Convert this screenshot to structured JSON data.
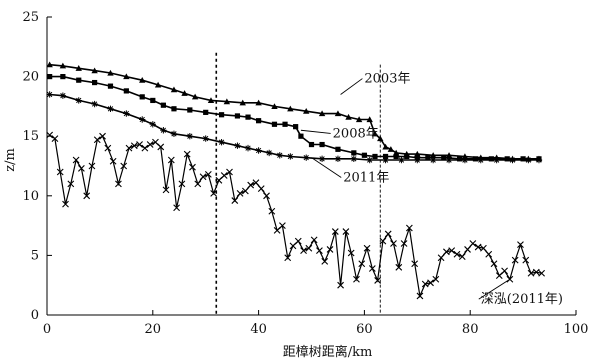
{
  "chart_data": {
    "type": "line",
    "title": "",
    "xlabel": "距樟树距离/km",
    "ylabel": "z/m",
    "xlim": [
      0,
      100
    ],
    "ylim": [
      0,
      25
    ],
    "xticks": [
      0,
      20,
      40,
      60,
      80,
      100
    ],
    "yticks": [
      0,
      5,
      10,
      15,
      20,
      25
    ],
    "grid": false,
    "legend": "none",
    "reference_lines_x": [
      32,
      63
    ],
    "series": [
      {
        "name": "2003年",
        "marker": "triangle",
        "color": "#000000",
        "points": [
          [
            0.5,
            21.0
          ],
          [
            3,
            20.9
          ],
          [
            6,
            20.7
          ],
          [
            9,
            20.5
          ],
          [
            12,
            20.3
          ],
          [
            15,
            20.0
          ],
          [
            18,
            19.7
          ],
          [
            21,
            19.3
          ],
          [
            24,
            18.9
          ],
          [
            26,
            18.6
          ],
          [
            28,
            18.3
          ],
          [
            31,
            18.0
          ],
          [
            34,
            17.9
          ],
          [
            37,
            17.8
          ],
          [
            40,
            17.8
          ],
          [
            43,
            17.5
          ],
          [
            46,
            17.3
          ],
          [
            49,
            17.1
          ],
          [
            52,
            16.9
          ],
          [
            55,
            16.9
          ],
          [
            57,
            16.6
          ],
          [
            59,
            16.4
          ],
          [
            61,
            16.4
          ],
          [
            62,
            15.2
          ],
          [
            63,
            14.8
          ],
          [
            64,
            14.1
          ],
          [
            65,
            13.9
          ],
          [
            66,
            13.6
          ],
          [
            68,
            13.5
          ],
          [
            70,
            13.5
          ],
          [
            73,
            13.4
          ],
          [
            76,
            13.4
          ],
          [
            79,
            13.3
          ],
          [
            82,
            13.2
          ],
          [
            85,
            13.2
          ],
          [
            88,
            13.1
          ],
          [
            91,
            13.1
          ],
          [
            93,
            13.1
          ]
        ]
      },
      {
        "name": "2008年",
        "marker": "square",
        "color": "#000000",
        "points": [
          [
            0.5,
            20.0
          ],
          [
            3,
            20.0
          ],
          [
            6,
            19.7
          ],
          [
            9,
            19.5
          ],
          [
            12,
            19.2
          ],
          [
            15,
            18.8
          ],
          [
            18,
            18.3
          ],
          [
            20,
            18.0
          ],
          [
            22,
            17.6
          ],
          [
            24,
            17.3
          ],
          [
            27,
            17.2
          ],
          [
            30,
            17.0
          ],
          [
            33,
            16.8
          ],
          [
            36,
            16.7
          ],
          [
            38,
            16.6
          ],
          [
            40,
            16.3
          ],
          [
            43,
            16.0
          ],
          [
            45,
            16.0
          ],
          [
            47,
            15.8
          ],
          [
            48,
            15.0
          ],
          [
            50,
            14.3
          ],
          [
            52,
            14.3
          ],
          [
            55,
            13.9
          ],
          [
            58,
            13.6
          ],
          [
            60,
            13.4
          ],
          [
            62,
            13.3
          ],
          [
            64,
            13.3
          ],
          [
            66,
            13.3
          ],
          [
            68,
            13.3
          ],
          [
            70,
            13.2
          ],
          [
            72,
            13.2
          ],
          [
            75,
            13.2
          ],
          [
            78,
            13.1
          ],
          [
            81,
            13.1
          ],
          [
            84,
            13.1
          ],
          [
            87,
            13.1
          ],
          [
            90,
            13.1
          ],
          [
            93,
            13.1
          ]
        ]
      },
      {
        "name": "2011年",
        "marker": "asterisk",
        "color": "#000000",
        "points": [
          [
            0.5,
            18.5
          ],
          [
            3,
            18.4
          ],
          [
            6,
            18.0
          ],
          [
            9,
            17.7
          ],
          [
            12,
            17.3
          ],
          [
            15,
            16.9
          ],
          [
            18,
            16.4
          ],
          [
            20,
            16.0
          ],
          [
            22,
            15.5
          ],
          [
            24,
            15.2
          ],
          [
            27,
            15.0
          ],
          [
            30,
            14.8
          ],
          [
            33,
            14.5
          ],
          [
            36,
            14.2
          ],
          [
            38,
            14.0
          ],
          [
            40,
            13.8
          ],
          [
            42,
            13.6
          ],
          [
            44,
            13.4
          ],
          [
            46,
            13.3
          ],
          [
            49,
            13.2
          ],
          [
            52,
            13.1
          ],
          [
            55,
            13.1
          ],
          [
            58,
            13.1
          ],
          [
            61,
            13.0
          ],
          [
            64,
            13.0
          ],
          [
            67,
            13.0
          ],
          [
            70,
            13.0
          ],
          [
            73,
            13.0
          ],
          [
            76,
            13.0
          ],
          [
            79,
            13.0
          ],
          [
            82,
            13.0
          ],
          [
            85,
            13.0
          ],
          [
            88,
            13.0
          ],
          [
            91,
            13.0
          ],
          [
            93,
            13.0
          ]
        ]
      },
      {
        "name": "深泓(2011年)",
        "marker": "x",
        "color": "#000000",
        "points": [
          [
            0.5,
            15.1
          ],
          [
            1.5,
            14.8
          ],
          [
            2.5,
            12.0
          ],
          [
            3.5,
            9.3
          ],
          [
            4.5,
            11.0
          ],
          [
            5.5,
            13.0
          ],
          [
            6.5,
            12.3
          ],
          [
            7.5,
            10.0
          ],
          [
            8.5,
            12.5
          ],
          [
            9.5,
            14.7
          ],
          [
            10.5,
            15.0
          ],
          [
            11.5,
            14.0
          ],
          [
            12.5,
            12.9
          ],
          [
            13.5,
            11.0
          ],
          [
            14.5,
            12.5
          ],
          [
            15.5,
            14.0
          ],
          [
            16.5,
            14.2
          ],
          [
            17.5,
            14.3
          ],
          [
            18.5,
            14.0
          ],
          [
            19.5,
            14.3
          ],
          [
            20.5,
            14.5
          ],
          [
            21.5,
            14.1
          ],
          [
            22.5,
            10.5
          ],
          [
            23.5,
            13.0
          ],
          [
            24.5,
            9.0
          ],
          [
            25.5,
            11.0
          ],
          [
            26.5,
            13.5
          ],
          [
            27.5,
            12.4
          ],
          [
            28.5,
            11.0
          ],
          [
            29.5,
            11.6
          ],
          [
            30.5,
            11.8
          ],
          [
            31.5,
            10.2
          ],
          [
            32.5,
            11.3
          ],
          [
            33.5,
            11.7
          ],
          [
            34.5,
            12.0
          ],
          [
            35.5,
            9.6
          ],
          [
            36.5,
            10.2
          ],
          [
            37.5,
            10.4
          ],
          [
            38.5,
            10.9
          ],
          [
            39.5,
            11.1
          ],
          [
            40.5,
            10.6
          ],
          [
            41.5,
            10.0
          ],
          [
            42.5,
            8.7
          ],
          [
            43.5,
            7.1
          ],
          [
            44.5,
            7.5
          ],
          [
            45.5,
            4.8
          ],
          [
            46.5,
            5.8
          ],
          [
            47.5,
            6.2
          ],
          [
            48.5,
            5.4
          ],
          [
            49.5,
            5.6
          ],
          [
            50.5,
            6.3
          ],
          [
            51.5,
            5.4
          ],
          [
            52.5,
            4.5
          ],
          [
            53.5,
            5.5
          ],
          [
            54.5,
            7.0
          ],
          [
            55.5,
            2.5
          ],
          [
            56.5,
            7.0
          ],
          [
            57.5,
            5.2
          ],
          [
            58.5,
            3.0
          ],
          [
            59.5,
            4.3
          ],
          [
            60.5,
            5.6
          ],
          [
            61.5,
            3.9
          ],
          [
            62.5,
            2.9
          ],
          [
            63.5,
            6.2
          ],
          [
            64.5,
            6.8
          ],
          [
            65.5,
            6.0
          ],
          [
            66.5,
            4.0
          ],
          [
            67.5,
            6.0
          ],
          [
            68.5,
            7.3
          ],
          [
            69.5,
            4.3
          ],
          [
            70.5,
            1.6
          ],
          [
            71.5,
            2.6
          ],
          [
            72.5,
            2.7
          ],
          [
            73.5,
            3.0
          ],
          [
            74.5,
            4.8
          ],
          [
            75.5,
            5.3
          ],
          [
            76.5,
            5.4
          ],
          [
            77.5,
            5.1
          ],
          [
            78.5,
            4.9
          ],
          [
            79.5,
            5.5
          ],
          [
            80.5,
            6.0
          ],
          [
            81.5,
            5.7
          ],
          [
            82.5,
            5.6
          ],
          [
            83.5,
            5.1
          ],
          [
            84.5,
            4.3
          ],
          [
            85.5,
            3.3
          ],
          [
            86.5,
            3.7
          ],
          [
            87.5,
            3.0
          ],
          [
            88.5,
            4.6
          ],
          [
            89.5,
            5.9
          ],
          [
            90.5,
            4.6
          ],
          [
            91.5,
            3.5
          ],
          [
            92.5,
            3.6
          ],
          [
            93.5,
            3.5
          ]
        ]
      }
    ],
    "annotations": [
      {
        "text": "2003年",
        "series": "2003年",
        "at": [
          55.5,
          18.5
        ],
        "label_at": [
          60,
          19.5
        ]
      },
      {
        "text": "2008年",
        "series": "2008年",
        "at": [
          48,
          15.5
        ],
        "label_at": [
          54,
          14.9
        ]
      },
      {
        "text": "2011年",
        "series": "2011年",
        "at": [
          50,
          13.2
        ],
        "label_at": [
          56,
          11.2
        ]
      },
      {
        "text": "深泓(2011年)",
        "series": "深泓(2011年)",
        "at": [
          87.5,
          3.0
        ],
        "label_at": [
          82,
          1.0
        ]
      }
    ]
  }
}
